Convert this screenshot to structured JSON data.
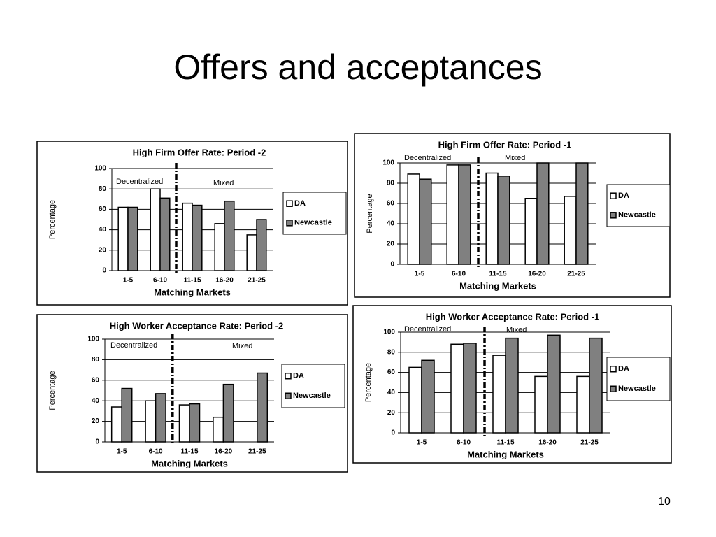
{
  "title": "Offers and acceptances",
  "page_number": "10",
  "chart_data": [
    {
      "type": "bar",
      "title": "High Firm Offer Rate:  Period -2",
      "categories": [
        "1-5",
        "6-10",
        "11-15",
        "16-20",
        "21-25"
      ],
      "series": [
        {
          "name": "DA",
          "color": "#ffffff",
          "values": [
            62,
            80,
            66,
            46,
            35
          ]
        },
        {
          "name": "Newcastle",
          "color": "#808080",
          "values": [
            62,
            71,
            64,
            68,
            50
          ]
        }
      ],
      "ylim": [
        0,
        100
      ],
      "yticks": [
        0,
        20,
        40,
        60,
        80,
        100
      ],
      "grid": true,
      "legend": "right",
      "y_label": "Percentage",
      "x_label": "Matching Markets",
      "annotations": [
        "Decentralized",
        "Mixed"
      ]
    },
    {
      "type": "bar",
      "title": "High Firm Offer Rate:  Period -1",
      "categories": [
        "1-5",
        "6-10",
        "11-15",
        "16-20",
        "21-25"
      ],
      "series": [
        {
          "name": "DA",
          "color": "#ffffff",
          "values": [
            89,
            98,
            90,
            65,
            67
          ]
        },
        {
          "name": "Newcastle",
          "color": "#808080",
          "values": [
            84,
            98,
            87,
            100,
            100
          ]
        }
      ],
      "ylim": [
        0,
        100
      ],
      "yticks": [
        0,
        20,
        40,
        60,
        80,
        100
      ],
      "grid": true,
      "legend": "right",
      "y_label": "Percentage",
      "x_label": "Matching Markets",
      "annotations": [
        "Decentralized",
        "Mixed"
      ]
    },
    {
      "type": "bar",
      "title": "High Worker Acceptance Rate:  Period -2",
      "categories": [
        "1-5",
        "6-10",
        "11-15",
        "16-20",
        "21-25"
      ],
      "series": [
        {
          "name": "DA",
          "color": "#ffffff",
          "values": [
            34,
            40,
            36,
            24,
            null
          ]
        },
        {
          "name": "Newcastle",
          "color": "#808080",
          "values": [
            52,
            47,
            37,
            56,
            67
          ]
        }
      ],
      "ylim": [
        0,
        100
      ],
      "yticks": [
        0,
        20,
        40,
        60,
        80,
        100
      ],
      "grid": true,
      "legend": "right",
      "y_label": "Percentage",
      "x_label": "Matching Markets",
      "annotations": [
        "Decentralized",
        "Mixed"
      ]
    },
    {
      "type": "bar",
      "title": "High Worker Acceptance Rate:  Period -1",
      "categories": [
        "1-5",
        "6-10",
        "11-15",
        "16-20",
        "21-25"
      ],
      "series": [
        {
          "name": "DA",
          "color": "#ffffff",
          "values": [
            65,
            88,
            77,
            56,
            56
          ]
        },
        {
          "name": "Newcastle",
          "color": "#808080",
          "values": [
            72,
            89,
            94,
            97,
            94
          ]
        }
      ],
      "ylim": [
        0,
        100
      ],
      "yticks": [
        0,
        20,
        40,
        60,
        80,
        100
      ],
      "grid": true,
      "legend": "right",
      "y_label": "Percentage",
      "x_label": "Matching Markets",
      "annotations": [
        "Decentralized",
        "Mixed"
      ]
    }
  ]
}
